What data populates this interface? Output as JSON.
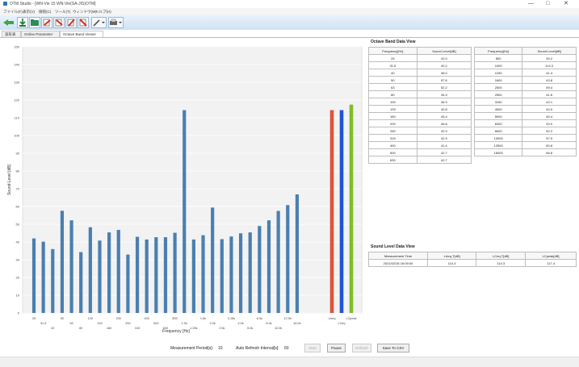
{
  "window": {
    "title": "OTM Studio - [WN-Vie 15 WN-Vie(SA-JIS)OTM]",
    "minimize": "—",
    "maximize": "□",
    "close": "✕"
  },
  "menu": [
    "ファイル(F)",
    "表示(V)",
    "接続(C)",
    "ツール(T)",
    "ウィンドウ(W)",
    "ヘルプ(H)"
  ],
  "toolbar": {
    "buttons": [
      "connect-icon",
      "download-icon",
      "folder-icon",
      "arrow-red-icon",
      "arrow-red-down-icon",
      "arrow-up-icon",
      "arrow-down-icon",
      "pen-icon",
      "printer-icon"
    ]
  },
  "tabs": [
    "波形表示",
    "Online Parameter",
    "Octave Band Viewer"
  ],
  "tab_close": "✕",
  "chart_data": {
    "type": "bar",
    "ylabel": "Sound Level [dB]",
    "xlabel": "Frequency [Hz]",
    "ylim": [
      0,
      150
    ],
    "yticks": [
      0,
      10,
      20,
      30,
      40,
      50,
      60,
      70,
      80,
      90,
      100,
      110,
      120,
      130,
      140,
      150
    ],
    "grid": true,
    "categories": [
      "25",
      "31.5",
      "40",
      "50",
      "63",
      "80",
      "100",
      "125",
      "160",
      "200",
      "250",
      "315",
      "400",
      "500",
      "630",
      "800",
      "1.0k",
      "1.25k",
      "1.6k",
      "2.0k",
      "2.5k",
      "3.15k",
      "4.0k",
      "5.0k",
      "6.3k",
      "8.0k",
      "10.0k",
      "12.5k",
      "16.0k"
    ],
    "tick_rows": [
      [
        "25",
        "",
        "",
        "50",
        "",
        "",
        "100",
        "",
        "",
        "200",
        "",
        "",
        "400",
        "",
        "",
        "800",
        "",
        "",
        "1.6k",
        "",
        "",
        "3.15k",
        "",
        "",
        "6.3k",
        "",
        "",
        "12.5k",
        ""
      ],
      [
        "",
        "31.5",
        "",
        "",
        "63",
        "",
        "",
        "125",
        "",
        "",
        "250",
        "",
        "",
        "500",
        "",
        "",
        "1.0k",
        "",
        "",
        "2.0k",
        "",
        "",
        "4.0k",
        "",
        "",
        "8.0k",
        "",
        "",
        "16.0k"
      ],
      [
        "",
        "",
        "40",
        "",
        "",
        "80",
        "",
        "",
        "160",
        "",
        "",
        "315",
        "",
        "",
        "630",
        "",
        "",
        "1.25k",
        "",
        "",
        "2.5k",
        "",
        "",
        "5.0k",
        "",
        "",
        "10.0k",
        "",
        ""
      ]
    ],
    "values": [
      42.0,
      40.2,
      36.0,
      57.6,
      52.2,
      34.3,
      48.3,
      40.8,
      45.4,
      46.8,
      32.9,
      42.9,
      41.4,
      42.7,
      42.7,
      45.2,
      114.3,
      41.4,
      43.8,
      59.4,
      41.6,
      43.1,
      44.9,
      45.4,
      49.0,
      52.2,
      57.5,
      60.8,
      66.8
    ],
    "overall": [
      {
        "label": "LAeq",
        "value": 114.3,
        "color": "#e0523a"
      },
      {
        "label": "LCeq",
        "value": 114.3,
        "color": "#1f54d6"
      },
      {
        "label": "LCpeak",
        "value": 117.4,
        "color": "#7dbf28"
      }
    ],
    "bar_color": "#4a7fb0"
  },
  "octave_table": {
    "title": "Octave Band Data View",
    "headers": [
      "Frequency[Hz]",
      "Sound Level[dB]"
    ],
    "left": [
      [
        "25",
        "42.0"
      ],
      [
        "31.5",
        "40.2"
      ],
      [
        "40",
        "36.0"
      ],
      [
        "50",
        "57.6"
      ],
      [
        "63",
        "52.2"
      ],
      [
        "80",
        "34.3"
      ],
      [
        "100",
        "48.3"
      ],
      [
        "125",
        "40.8"
      ],
      [
        "160",
        "45.4"
      ],
      [
        "200",
        "46.8"
      ],
      [
        "250",
        "32.9"
      ],
      [
        "315",
        "42.9"
      ],
      [
        "400",
        "41.4"
      ],
      [
        "500",
        "42.7"
      ],
      [
        "630",
        "42.7"
      ]
    ],
    "right": [
      [
        "800",
        "45.2"
      ],
      [
        "1000",
        "114.3"
      ],
      [
        "1250",
        "41.4"
      ],
      [
        "1600",
        "43.8"
      ],
      [
        "2000",
        "59.4"
      ],
      [
        "2500",
        "41.6"
      ],
      [
        "3150",
        "43.1"
      ],
      [
        "4000",
        "44.9"
      ],
      [
        "5000",
        "45.4"
      ],
      [
        "6300",
        "49.0"
      ],
      [
        "8000",
        "52.2"
      ],
      [
        "10000",
        "57.5"
      ],
      [
        "12500",
        "60.8"
      ],
      [
        "16000",
        "66.8"
      ]
    ]
  },
  "sound_level_table": {
    "title": "Sound Level Data View",
    "headers": [
      "Measurement Time",
      "LAeq,T[dB]",
      "LCeq,T[dB]",
      "LCpeak[dB]"
    ],
    "row": [
      "2021/02/26 16:09:00",
      "114.3",
      "114.3",
      "117.4"
    ]
  },
  "footer": {
    "period_label": "Measurement Period[s]:",
    "period_value": "10",
    "refresh_label": "Auto Refresh Interval[s]:",
    "refresh_value": "60",
    "start": "Start",
    "pause": "Pause",
    "refresh": "Refresh",
    "save": "Save To CSV"
  }
}
